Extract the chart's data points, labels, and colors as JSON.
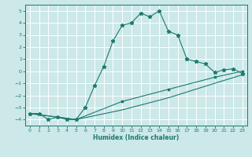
{
  "xlabel": "Humidex (Indice chaleur)",
  "bg_color": "#cce8e8",
  "grid_color": "#ffffff",
  "line_color": "#1a7a6e",
  "xlim": [
    -0.5,
    23.5
  ],
  "ylim": [
    -4.5,
    5.5
  ],
  "xticks": [
    0,
    1,
    2,
    3,
    4,
    5,
    6,
    7,
    8,
    9,
    10,
    11,
    12,
    13,
    14,
    15,
    16,
    17,
    18,
    19,
    20,
    21,
    22,
    23
  ],
  "yticks": [
    -4,
    -3,
    -2,
    -1,
    0,
    1,
    2,
    3,
    4,
    5
  ],
  "line1_x": [
    0,
    1,
    2,
    3,
    4,
    5,
    6,
    7,
    8,
    9,
    10,
    11,
    12,
    13,
    14,
    15,
    16,
    17,
    18,
    19,
    20,
    21,
    22,
    23
  ],
  "line1_y": [
    -3.5,
    -3.5,
    -4.0,
    -3.8,
    -4.0,
    -4.0,
    -3.0,
    -1.2,
    0.4,
    2.5,
    3.8,
    4.0,
    4.8,
    4.5,
    5.0,
    3.3,
    3.0,
    1.0,
    0.8,
    0.6,
    -0.1,
    0.1,
    0.2,
    -0.2
  ],
  "line2_x": [
    0,
    5,
    10,
    15,
    20,
    23
  ],
  "line2_y": [
    -3.5,
    -4.0,
    -2.5,
    -1.5,
    -0.5,
    0.0
  ],
  "line3_x": [
    0,
    5,
    10,
    15,
    20,
    23
  ],
  "line3_y": [
    -3.5,
    -4.0,
    -3.2,
    -2.2,
    -1.0,
    -0.3
  ],
  "xlabel_fontsize": 5.5,
  "tick_fontsize": 4.5
}
